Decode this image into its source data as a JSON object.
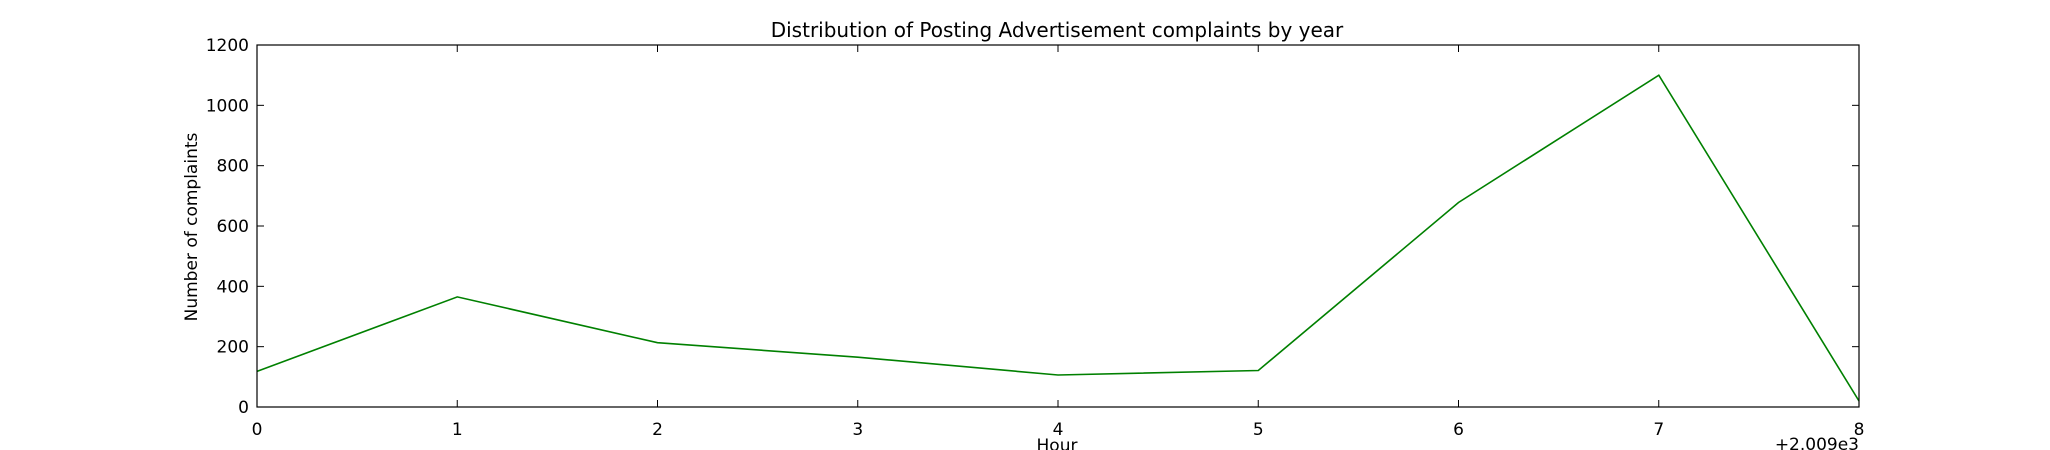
{
  "chart_data": {
    "type": "line",
    "title": "Distribution of  Posting Advertisement complaints by year",
    "xlabel": "Hour",
    "ylabel": "Number of complaints",
    "x_offset_label": "+2.009e3",
    "xlim": [
      0,
      8
    ],
    "ylim": [
      0,
      1200
    ],
    "x_ticks": [
      0,
      1,
      2,
      3,
      4,
      5,
      6,
      7,
      8
    ],
    "y_ticks": [
      0,
      200,
      400,
      600,
      800,
      1000,
      1200
    ],
    "grid": false,
    "line_color": "#008000",
    "series": [
      {
        "x": [
          0,
          1,
          2,
          3,
          4,
          5,
          6,
          7,
          8
        ],
        "values": [
          118,
          365,
          213,
          165,
          106,
          121,
          678,
          1100,
          20
        ]
      }
    ]
  }
}
